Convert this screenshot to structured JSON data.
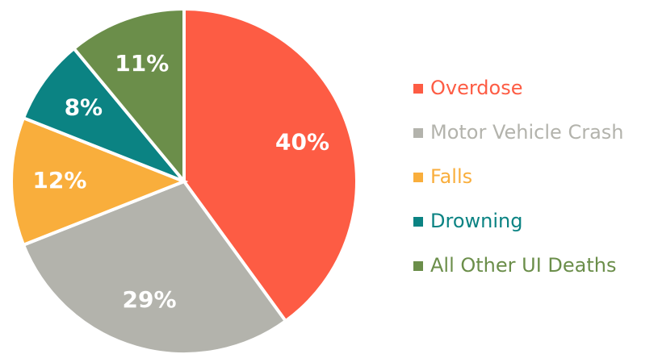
{
  "chart_data": {
    "type": "pie",
    "categories": [
      "Overdose",
      "Motor Vehicle Crash",
      "Falls",
      "Drowning",
      "All Other UI Deaths"
    ],
    "values": [
      40,
      29,
      12,
      8,
      11
    ],
    "value_labels": [
      "40%",
      "29%",
      "12%",
      "8%",
      "11%"
    ],
    "colors": [
      "#fd5c44",
      "#b3b3ac",
      "#f9ae3c",
      "#0b8383",
      "#6b8e4a"
    ],
    "legend": "right"
  }
}
